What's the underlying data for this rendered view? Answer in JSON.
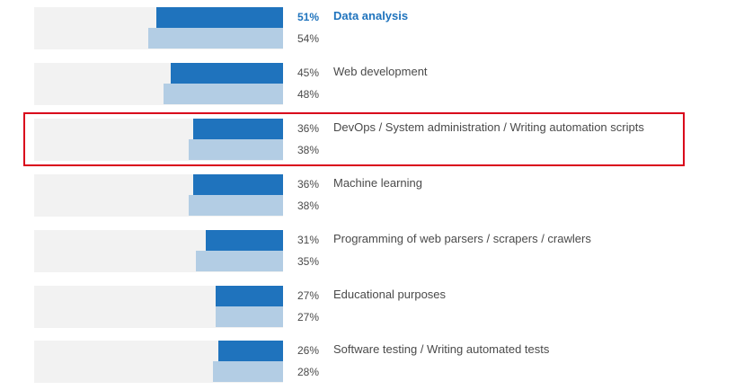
{
  "colors": {
    "primary_bar": "#1f73bd",
    "secondary_bar": "#b3cde4",
    "track": "#f2f2f2",
    "highlight_border": "#d9001b",
    "active_label": "#1f73bd"
  },
  "chart_data": {
    "type": "bar",
    "orientation": "horizontal",
    "value_scale_max": 100,
    "categories": [
      "Data analysis",
      "Web development",
      "DevOps / System administration / Writing automation scripts",
      "Machine learning",
      "Programming of web parsers / scrapers / crawlers",
      "Educational purposes",
      "Software testing / Writing automated tests"
    ],
    "series": [
      {
        "values": [
          51,
          45,
          36,
          36,
          31,
          27,
          26
        ]
      },
      {
        "values": [
          54,
          48,
          38,
          38,
          35,
          27,
          28
        ]
      }
    ],
    "value_labels": [
      [
        "51%",
        "54%"
      ],
      [
        "45%",
        "48%"
      ],
      [
        "36%",
        "38%"
      ],
      [
        "36%",
        "38%"
      ],
      [
        "31%",
        "35%"
      ],
      [
        "27%",
        "27%"
      ],
      [
        "26%",
        "28%"
      ]
    ],
    "active_index": 0,
    "highlighted_index": 2
  }
}
